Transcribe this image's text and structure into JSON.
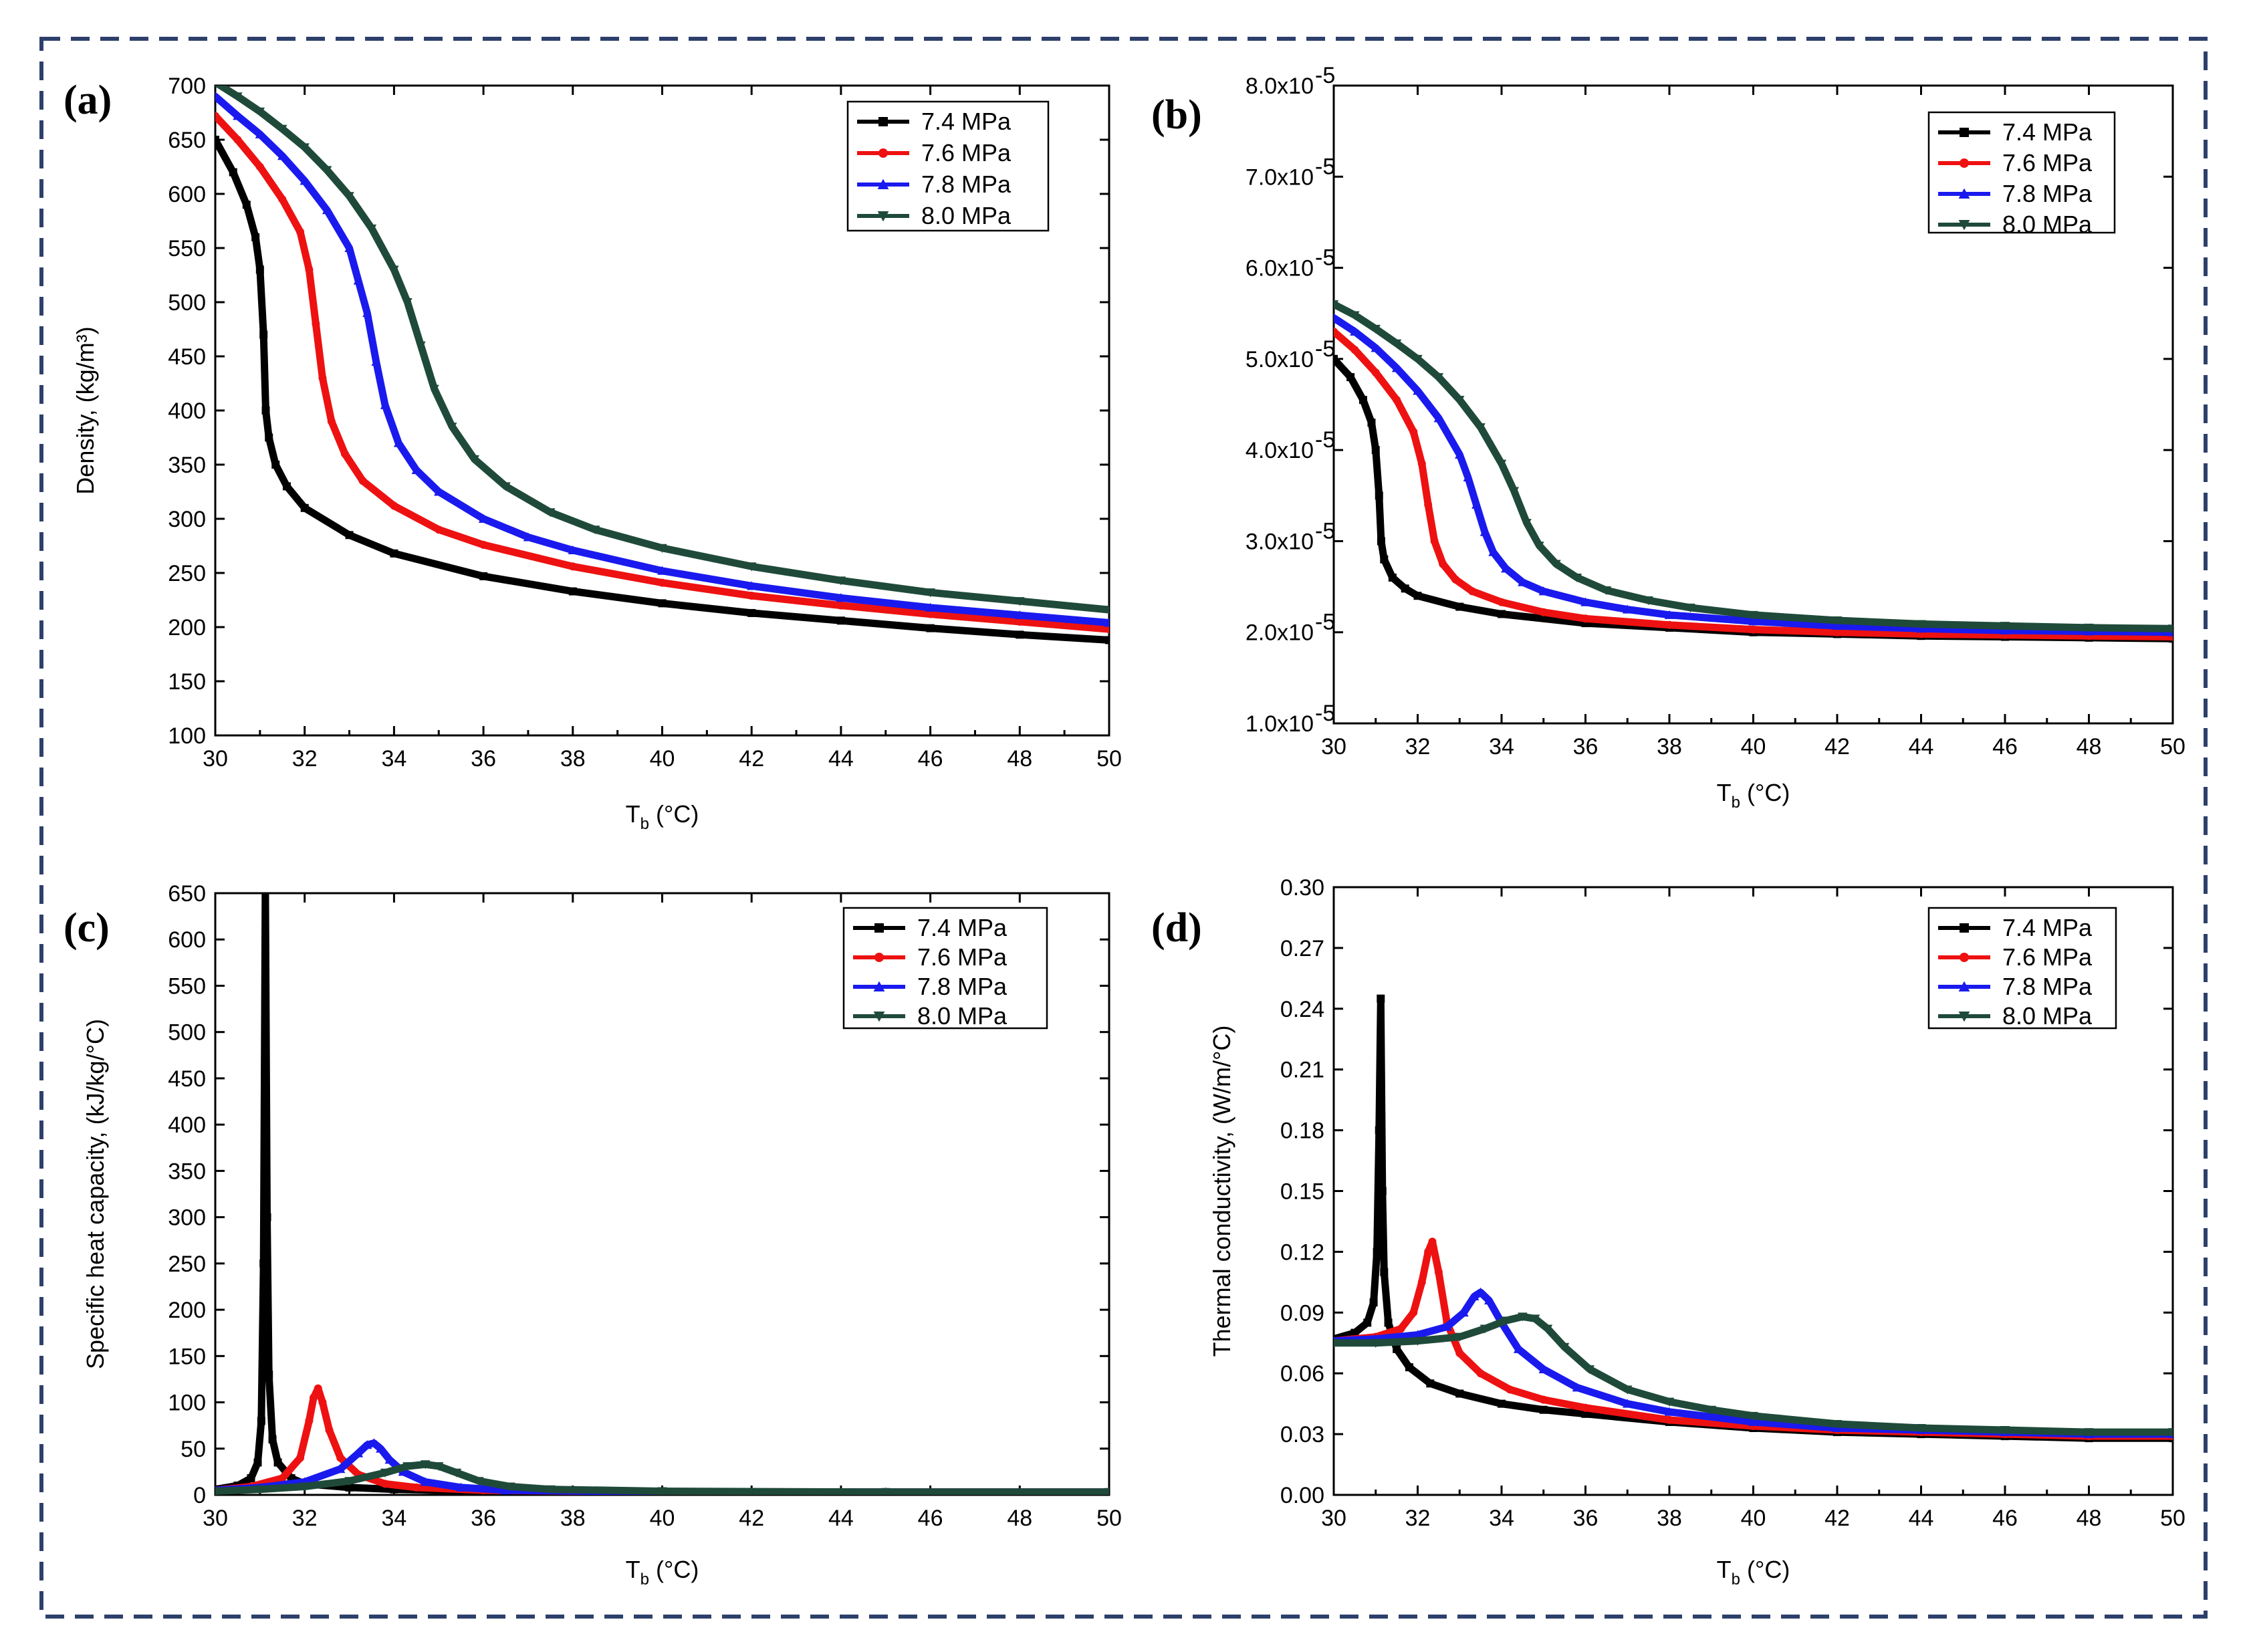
{
  "colors": {
    "7.4 MPa": "#000000",
    "7.6 MPa": "#ee1111",
    "7.8 MPa": "#1a1aee",
    "8.0 MPa": "#1f4a3a",
    "frame": "#2d3f6b"
  },
  "chart_data": [
    {
      "panel": "(a)",
      "type": "line",
      "xlabel_main": "T",
      "xlabel_sub": "b",
      "xlabel_unit": " (°C)",
      "ylabel": "Density, (kg/m³)",
      "xlim": [
        30,
        50
      ],
      "ylim": [
        100,
        700
      ],
      "xticks": [
        30,
        32,
        34,
        36,
        38,
        40,
        42,
        44,
        46,
        48,
        50
      ],
      "yticks": [
        100,
        150,
        200,
        250,
        300,
        350,
        400,
        450,
        500,
        550,
        600,
        650,
        700
      ],
      "ytick_labels": [
        "100",
        "150",
        "200",
        "250",
        "300",
        "350",
        "400",
        "450",
        "500",
        "550",
        "600",
        "650",
        "700"
      ],
      "legend": [
        "7.4 MPa",
        "7.6 MPa",
        "7.8 MPa",
        "8.0 MPa"
      ],
      "series": [
        {
          "name": "7.4 MPa",
          "marker": "square",
          "x": [
            30,
            30.4,
            30.7,
            30.9,
            31.0,
            31.08,
            31.13,
            31.2,
            31.35,
            31.6,
            32,
            33,
            34,
            36,
            38,
            40,
            42,
            44,
            46,
            48,
            50
          ],
          "y": [
            650,
            620,
            590,
            560,
            530,
            470,
            400,
            375,
            350,
            330,
            310,
            285,
            268,
            247,
            233,
            222,
            213,
            206,
            199,
            193,
            188
          ]
        },
        {
          "name": "7.6 MPa",
          "marker": "circle",
          "x": [
            30,
            30.5,
            31,
            31.5,
            31.9,
            32.1,
            32.25,
            32.4,
            32.6,
            32.9,
            33.3,
            34,
            35,
            36,
            38,
            40,
            42,
            44,
            46,
            48,
            50
          ],
          "y": [
            672,
            650,
            625,
            595,
            565,
            530,
            480,
            430,
            390,
            360,
            335,
            312,
            290,
            276,
            256,
            241,
            229,
            220,
            212,
            205,
            198
          ]
        },
        {
          "name": "7.8 MPa",
          "marker": "triangle",
          "x": [
            30,
            30.5,
            31,
            31.5,
            32,
            32.5,
            33,
            33.2,
            33.4,
            33.6,
            33.8,
            34.1,
            34.5,
            35,
            36,
            37,
            38,
            40,
            42,
            44,
            46,
            48,
            50
          ],
          "y": [
            690,
            672,
            655,
            635,
            612,
            585,
            550,
            520,
            490,
            445,
            405,
            370,
            345,
            325,
            300,
            283,
            271,
            252,
            238,
            227,
            218,
            211,
            204
          ]
        },
        {
          "name": "8.0 MPa",
          "marker": "triangle-down",
          "x": [
            30,
            30.5,
            31,
            31.5,
            32,
            32.5,
            33,
            33.5,
            34,
            34.3,
            34.6,
            34.9,
            35.3,
            35.8,
            36.5,
            37.5,
            38.5,
            40,
            42,
            44,
            46,
            48,
            50
          ],
          "y": [
            703,
            690,
            676,
            660,
            643,
            622,
            598,
            568,
            530,
            500,
            460,
            420,
            385,
            355,
            330,
            306,
            290,
            273,
            256,
            243,
            232,
            224,
            216
          ]
        }
      ]
    },
    {
      "panel": "(b)",
      "type": "line",
      "xlabel_main": "T",
      "xlabel_sub": "b",
      "xlabel_unit": " (°C)",
      "ylabel": "",
      "xlim": [
        30,
        50
      ],
      "ylim": [
        1e-05,
        8e-05
      ],
      "xticks": [
        30,
        32,
        34,
        36,
        38,
        40,
        42,
        44,
        46,
        48,
        50
      ],
      "yticks": [
        1e-05,
        2e-05,
        3e-05,
        4e-05,
        5e-05,
        6e-05,
        7e-05,
        8e-05
      ],
      "ytick_labels": [
        "1.0x10",
        "2.0x10",
        "3.0x10",
        "4.0x10",
        "5.0x10",
        "6.0x10",
        "7.0x10",
        "8.0x10"
      ],
      "ytick_exponent": "-5",
      "legend": [
        "7.4 MPa",
        "7.6 MPa",
        "7.8 MPa",
        "8.0 MPa"
      ],
      "series": [
        {
          "name": "7.4 MPa",
          "marker": "square",
          "x": [
            30,
            30.4,
            30.7,
            30.9,
            31.0,
            31.08,
            31.13,
            31.2,
            31.4,
            31.7,
            32,
            33,
            34,
            36,
            38,
            40,
            42,
            44,
            46,
            48,
            50
          ],
          "y": [
            5e-05,
            4.8e-05,
            4.55e-05,
            4.3e-05,
            4e-05,
            3.5e-05,
            3e-05,
            2.8e-05,
            2.6e-05,
            2.48e-05,
            2.4e-05,
            2.28e-05,
            2.2e-05,
            2.1e-05,
            2.05e-05,
            2e-05,
            1.98e-05,
            1.96e-05,
            1.95e-05,
            1.94e-05,
            1.93e-05
          ]
        },
        {
          "name": "7.6 MPa",
          "marker": "circle",
          "x": [
            30,
            30.5,
            31,
            31.5,
            31.9,
            32.1,
            32.25,
            32.4,
            32.6,
            32.9,
            33.3,
            34,
            35,
            36,
            38,
            40,
            42,
            44,
            46,
            48,
            50
          ],
          "y": [
            5.3e-05,
            5.1e-05,
            4.85e-05,
            4.55e-05,
            4.2e-05,
            3.85e-05,
            3.4e-05,
            3e-05,
            2.75e-05,
            2.58e-05,
            2.45e-05,
            2.33e-05,
            2.22e-05,
            2.15e-05,
            2.08e-05,
            2.03e-05,
            2e-05,
            1.98e-05,
            1.97e-05,
            1.96e-05,
            1.95e-05
          ]
        },
        {
          "name": "7.8 MPa",
          "marker": "triangle",
          "x": [
            30,
            30.5,
            31,
            31.5,
            32,
            32.5,
            33,
            33.2,
            33.4,
            33.6,
            33.8,
            34.1,
            34.5,
            35,
            36,
            37,
            38,
            40,
            42,
            44,
            46,
            48,
            50
          ],
          "y": [
            5.45e-05,
            5.3e-05,
            5.12e-05,
            4.9e-05,
            4.65e-05,
            4.35e-05,
            3.95e-05,
            3.7e-05,
            3.4e-05,
            3.1e-05,
            2.88e-05,
            2.7e-05,
            2.55e-05,
            2.45e-05,
            2.33e-05,
            2.25e-05,
            2.19e-05,
            2.12e-05,
            2.07e-05,
            2.04e-05,
            2.02e-05,
            2.01e-05,
            2e-05
          ]
        },
        {
          "name": "8.0 MPa",
          "marker": "triangle-down",
          "x": [
            30,
            30.5,
            31,
            31.5,
            32,
            32.5,
            33,
            33.5,
            34,
            34.3,
            34.6,
            34.9,
            35.3,
            35.8,
            36.5,
            37.5,
            38.5,
            40,
            42,
            44,
            46,
            48,
            50
          ],
          "y": [
            5.6e-05,
            5.48e-05,
            5.33e-05,
            5.17e-05,
            5e-05,
            4.8e-05,
            4.55e-05,
            4.25e-05,
            3.85e-05,
            3.55e-05,
            3.2e-05,
            2.95e-05,
            2.75e-05,
            2.6e-05,
            2.46e-05,
            2.35e-05,
            2.27e-05,
            2.19e-05,
            2.13e-05,
            2.09e-05,
            2.07e-05,
            2.05e-05,
            2.04e-05
          ]
        }
      ]
    },
    {
      "panel": "(c)",
      "type": "line",
      "xlabel_main": "T",
      "xlabel_sub": "b",
      "xlabel_unit": " (°C)",
      "ylabel": "Specific heat capacity, (kJ/kg/°C)",
      "xlim": [
        30,
        50
      ],
      "ylim": [
        0,
        650
      ],
      "xticks": [
        30,
        32,
        34,
        36,
        38,
        40,
        42,
        44,
        46,
        48,
        50
      ],
      "yticks": [
        0,
        50,
        100,
        150,
        200,
        250,
        300,
        350,
        400,
        450,
        500,
        550,
        600,
        650
      ],
      "ytick_labels": [
        "0",
        "50",
        "100",
        "150",
        "200",
        "250",
        "300",
        "350",
        "400",
        "450",
        "500",
        "550",
        "600",
        "650"
      ],
      "legend": [
        "7.4 MPa",
        "7.6 MPa",
        "7.8 MPa",
        "8.0 MPa"
      ],
      "series": [
        {
          "name": "7.4 MPa",
          "marker": "square",
          "x": [
            30,
            30.5,
            30.8,
            30.95,
            31.03,
            31.08,
            31.12,
            31.16,
            31.2,
            31.28,
            31.4,
            31.7,
            32,
            33,
            34,
            36,
            40,
            45,
            50
          ],
          "y": [
            6,
            10,
            18,
            35,
            80,
            250,
            655,
            300,
            130,
            60,
            35,
            18,
            12,
            8,
            6,
            4,
            3,
            3,
            3
          ]
        },
        {
          "name": "7.6 MPa",
          "marker": "circle",
          "x": [
            30,
            30.8,
            31.5,
            31.9,
            32.1,
            32.2,
            32.3,
            32.4,
            32.55,
            32.8,
            33.2,
            33.8,
            34.5,
            36,
            40,
            45,
            50
          ],
          "y": [
            5,
            9,
            18,
            40,
            80,
            105,
            115,
            100,
            70,
            40,
            22,
            12,
            8,
            5,
            3,
            3,
            3
          ]
        },
        {
          "name": "7.8 MPa",
          "marker": "triangle",
          "x": [
            30,
            31,
            32,
            32.8,
            33.2,
            33.4,
            33.55,
            33.7,
            33.9,
            34.2,
            34.7,
            35.5,
            36.5,
            40,
            45,
            50
          ],
          "y": [
            5,
            8,
            14,
            28,
            45,
            54,
            56,
            50,
            38,
            25,
            14,
            8,
            5,
            3,
            3,
            3
          ]
        },
        {
          "name": "8.0 MPa",
          "marker": "triangle-down",
          "x": [
            30,
            31,
            32,
            33,
            33.8,
            34.3,
            34.7,
            35.0,
            35.4,
            35.9,
            36.6,
            37.5,
            40,
            45,
            50
          ],
          "y": [
            4,
            6,
            9,
            15,
            24,
            31,
            33,
            31,
            24,
            15,
            9,
            6,
            4,
            3,
            3
          ]
        }
      ]
    },
    {
      "panel": "(d)",
      "type": "line",
      "xlabel_main": "T",
      "xlabel_sub": "b",
      "xlabel_unit": " (°C)",
      "ylabel": "Thermal conductivity, (W/m/°C)",
      "xlim": [
        30,
        50
      ],
      "ylim": [
        0,
        0.3
      ],
      "xticks": [
        30,
        32,
        34,
        36,
        38,
        40,
        42,
        44,
        46,
        48,
        50
      ],
      "yticks": [
        0,
        0.03,
        0.06,
        0.09,
        0.12,
        0.15,
        0.18,
        0.21,
        0.24,
        0.27,
        0.3
      ],
      "ytick_labels": [
        "0.00",
        "0.03",
        "0.06",
        "0.09",
        "0.12",
        "0.15",
        "0.18",
        "0.21",
        "0.24",
        "0.27",
        "0.30"
      ],
      "legend": [
        "7.4 MPa",
        "7.6 MPa",
        "7.8 MPa",
        "8.0 MPa"
      ],
      "series": [
        {
          "name": "7.4 MPa",
          "marker": "square",
          "x": [
            30,
            30.5,
            30.8,
            30.95,
            31.03,
            31.08,
            31.12,
            31.16,
            31.2,
            31.3,
            31.5,
            31.8,
            32.3,
            33,
            34,
            35,
            36,
            38,
            40,
            42,
            44,
            46,
            48,
            50
          ],
          "y": [
            0.077,
            0.08,
            0.085,
            0.095,
            0.12,
            0.18,
            0.245,
            0.15,
            0.11,
            0.085,
            0.072,
            0.063,
            0.055,
            0.05,
            0.045,
            0.042,
            0.04,
            0.036,
            0.033,
            0.031,
            0.03,
            0.029,
            0.028,
            0.028
          ]
        },
        {
          "name": "7.6 MPa",
          "marker": "circle",
          "x": [
            30,
            31,
            31.6,
            31.9,
            32.1,
            32.25,
            32.35,
            32.5,
            32.7,
            33,
            33.5,
            34.2,
            35,
            36,
            38,
            40,
            42,
            44,
            46,
            48,
            50
          ],
          "y": [
            0.076,
            0.078,
            0.082,
            0.09,
            0.105,
            0.12,
            0.125,
            0.11,
            0.085,
            0.07,
            0.06,
            0.052,
            0.047,
            0.043,
            0.037,
            0.034,
            0.032,
            0.031,
            0.03,
            0.029,
            0.029
          ]
        },
        {
          "name": "7.8 MPa",
          "marker": "triangle",
          "x": [
            30,
            31,
            32,
            32.7,
            33.1,
            33.35,
            33.5,
            33.7,
            34,
            34.4,
            35,
            35.8,
            37,
            38,
            40,
            42,
            44,
            46,
            48,
            50
          ],
          "y": [
            0.076,
            0.077,
            0.079,
            0.083,
            0.09,
            0.098,
            0.1,
            0.096,
            0.085,
            0.072,
            0.062,
            0.053,
            0.045,
            0.041,
            0.036,
            0.033,
            0.032,
            0.031,
            0.03,
            0.03
          ]
        },
        {
          "name": "8.0 MPa",
          "marker": "triangle-down",
          "x": [
            30,
            31,
            32,
            33,
            33.6,
            34.1,
            34.5,
            34.8,
            35.1,
            35.5,
            36.1,
            37,
            38,
            39,
            40,
            42,
            44,
            46,
            48,
            50
          ],
          "y": [
            0.075,
            0.075,
            0.076,
            0.078,
            0.082,
            0.086,
            0.088,
            0.087,
            0.082,
            0.073,
            0.062,
            0.052,
            0.046,
            0.042,
            0.039,
            0.035,
            0.033,
            0.032,
            0.031,
            0.031
          ]
        }
      ]
    }
  ]
}
